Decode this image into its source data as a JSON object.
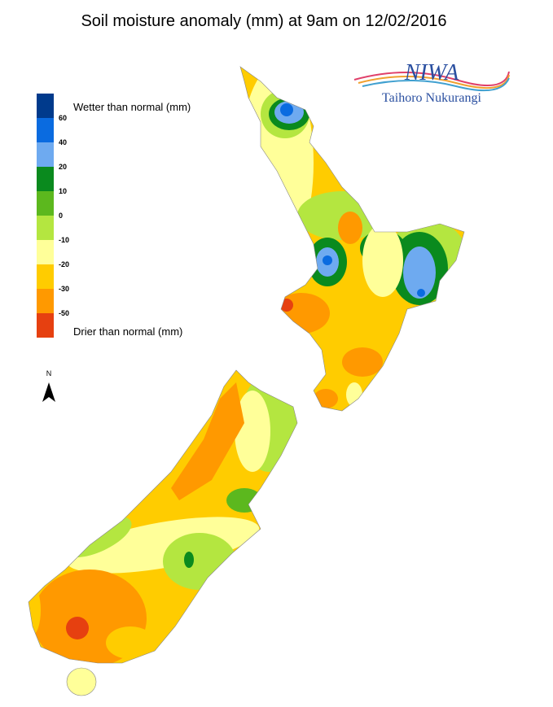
{
  "header": {
    "title": "Soil moisture anomaly (mm) at 9am on 12/02/2016"
  },
  "logo": {
    "name": "NIWA",
    "subtitle": "Taihoro Nukurangi"
  },
  "legend": {
    "wetter": "Wetter than normal (mm)",
    "drier": "Drier than normal (mm)",
    "labels": [
      60,
      40,
      20,
      10,
      0,
      -10,
      -20,
      -30,
      -50
    ]
  },
  "north_arrow": "N"
}
